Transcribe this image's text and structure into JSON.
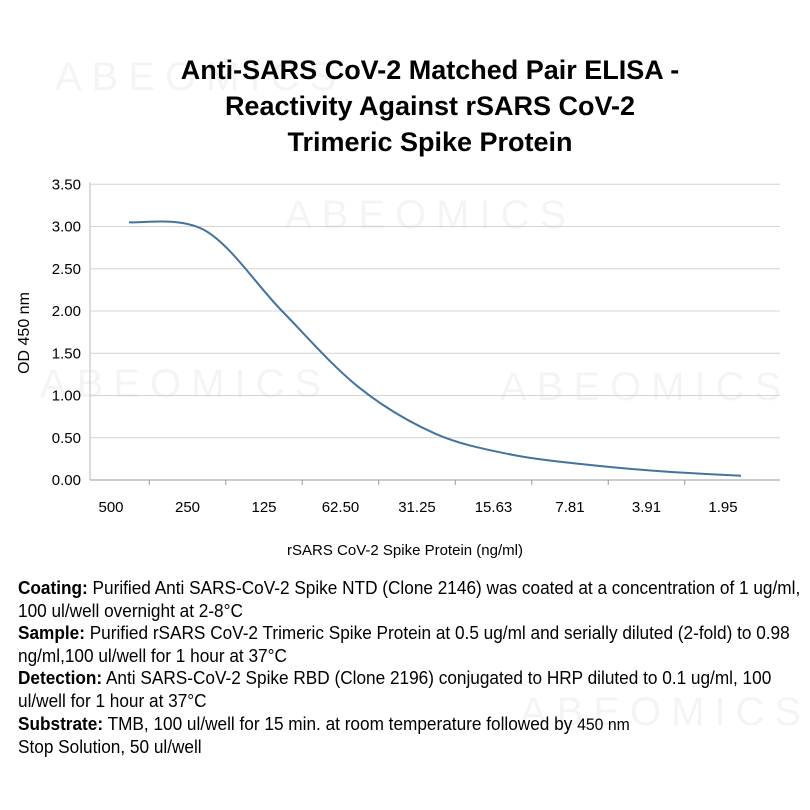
{
  "watermark": "ABEOMICS",
  "chart_data": {
    "type": "line",
    "title": [
      "Anti-SARS CoV-2 Matched Pair ELISA -",
      "Reactivity Against rSARS CoV-2",
      "Trimeric Spike Protein"
    ],
    "xlabel": "rSARS CoV-2 Spike Protein (ng/ml)",
    "ylabel": "OD 450 nm",
    "categories": [
      "500",
      "250",
      "125",
      "62.50",
      "31.25",
      "15.63",
      "7.81",
      "3.91",
      "1.95"
    ],
    "yticks": [
      "0.00",
      "0.50",
      "1.00",
      "1.50",
      "2.00",
      "2.50",
      "3.00",
      "3.50"
    ],
    "ylim": [
      0,
      3.5
    ],
    "grid": true,
    "series": [
      {
        "name": "OD 450 nm",
        "color": "#44739f",
        "values": [
          3.05,
          2.95,
          2.0,
          1.1,
          0.55,
          0.3,
          0.18,
          0.1,
          0.05
        ]
      }
    ]
  },
  "notes": [
    {
      "label": "Coating:",
      "text": " Purified Anti SARS-CoV-2 Spike NTD (Clone 2146) was coated at a concentration of 1 ug/ml, 100 ul/well overnight at 2-8°C"
    },
    {
      "label": "Sample:",
      "text": " Purified rSARS CoV-2 Trimeric Spike Protein at 0.5 ug/ml and serially diluted (2-fold) to  0.98 ng/ml,100 ul/well for 1 hour at 37°C"
    },
    {
      "label": "Detection:",
      "text": " Anti SARS-CoV-2 Spike RBD (Clone 2196) conjugated to HRP diluted to 0.1 ug/ml, 100 ul/well for 1 hour at 37°C"
    },
    {
      "label": "Substrate:",
      "text": " TMB, 100 ul/well for 15 min. at room temperature followed by",
      "text2": "450 nm",
      "text3": "Stop Solution, 50 ul/well"
    }
  ]
}
